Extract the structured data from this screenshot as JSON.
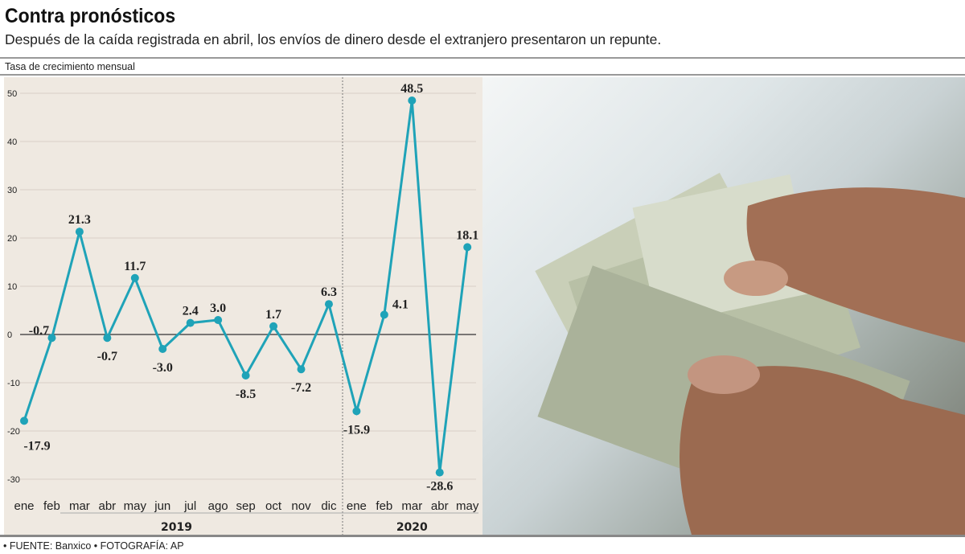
{
  "header": {
    "title": "Contra pronósticos",
    "subtitle": "Después de la caída registrada en abril, los envíos de dinero desde el extranjero presentaron un repunte.",
    "y_axis_label": "Tasa de crecimiento mensual"
  },
  "footer": {
    "source": "• FUENTE: Banxico • FOTOGRAFÍA: AP"
  },
  "colors": {
    "line": "#1fa3b8",
    "panel": "#efe9e1"
  },
  "chart_data": {
    "type": "line",
    "title": "Contra pronósticos",
    "ylabel": "Tasa de crecimiento mensual",
    "ylim": [
      -30,
      50
    ],
    "yticks": [
      50,
      40,
      30,
      20,
      10,
      0,
      -10,
      -20,
      -30
    ],
    "categories": [
      "ene",
      "feb",
      "mar",
      "abr",
      "may",
      "jun",
      "jul",
      "ago",
      "sep",
      "oct",
      "nov",
      "dic",
      "ene",
      "feb",
      "mar",
      "abr",
      "may"
    ],
    "years": [
      {
        "label": "2019",
        "months": 12
      },
      {
        "label": "2020",
        "months": 5
      }
    ],
    "values": [
      -17.9,
      -0.7,
      21.3,
      -0.7,
      11.7,
      -3.0,
      2.4,
      3.0,
      -8.5,
      1.7,
      -7.2,
      6.3,
      -15.9,
      4.1,
      48.5,
      -28.6,
      18.1
    ],
    "value_labels": [
      "-17.9",
      "-0.7",
      "21.3",
      "-0.7",
      "11.7",
      "-3.0",
      "2.4",
      "3.0",
      "-8.5",
      "1.7",
      "-7.2",
      "6.3",
      "-15.9",
      "4.1",
      "48.5",
      "-28.6",
      "18.1"
    ]
  }
}
